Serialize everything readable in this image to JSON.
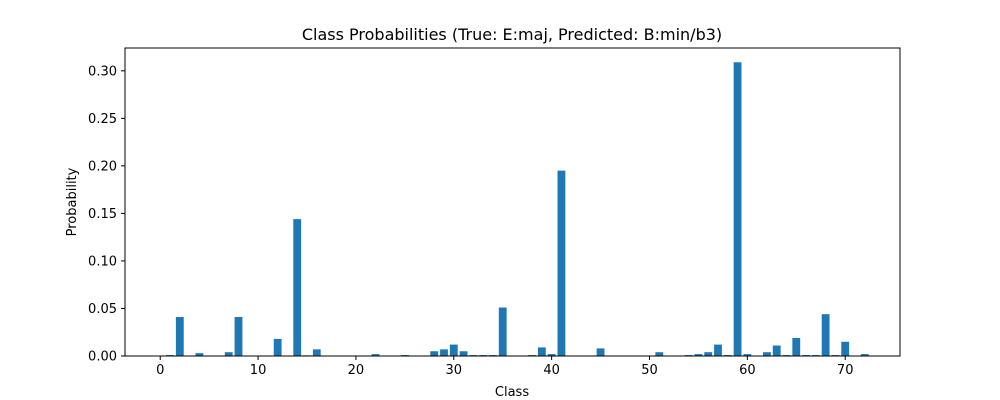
{
  "chart_data": {
    "type": "bar",
    "title": "Class Probabilities (True: E:maj, Predicted: B:min/b3)",
    "xlabel": "Class",
    "ylabel": "Probability",
    "xlim": [
      -3.6,
      75.6
    ],
    "ylim": [
      0,
      0.324
    ],
    "xticks": [
      0,
      10,
      20,
      30,
      40,
      50,
      60,
      70
    ],
    "yticks": [
      0.0,
      0.05,
      0.1,
      0.15,
      0.2,
      0.25,
      0.3
    ],
    "ytick_labels": [
      "0.00",
      "0.05",
      "0.10",
      "0.15",
      "0.20",
      "0.25",
      "0.30"
    ],
    "bar_color": "#1f77b4",
    "grid": false,
    "x": [
      0,
      1,
      2,
      3,
      4,
      5,
      6,
      7,
      8,
      9,
      10,
      11,
      12,
      13,
      14,
      15,
      16,
      17,
      18,
      19,
      20,
      21,
      22,
      23,
      24,
      25,
      26,
      27,
      28,
      29,
      30,
      31,
      32,
      33,
      34,
      35,
      36,
      37,
      38,
      39,
      40,
      41,
      42,
      43,
      44,
      45,
      46,
      47,
      48,
      49,
      50,
      51,
      52,
      53,
      54,
      55,
      56,
      57,
      58,
      59,
      60,
      61,
      62,
      63,
      64,
      65,
      66,
      67,
      68,
      69,
      70,
      71,
      72
    ],
    "values": [
      0.0003,
      0.001,
      0.041,
      0.0002,
      0.003,
      0.0002,
      0.0002,
      0.004,
      0.041,
      0.0002,
      0.0002,
      0.0002,
      0.018,
      0.0002,
      0.144,
      0.0007,
      0.007,
      0.0002,
      0.0002,
      0.0002,
      0.0002,
      0.0002,
      0.002,
      0.0002,
      0.0002,
      0.001,
      0.0002,
      0.0002,
      0.005,
      0.007,
      0.012,
      0.005,
      0.001,
      0.001,
      0.001,
      0.051,
      0.0002,
      0.0002,
      0.001,
      0.009,
      0.002,
      0.195,
      0.0002,
      0.0002,
      0.0002,
      0.008,
      0.0002,
      0.0002,
      0.0002,
      0.0002,
      0.0002,
      0.004,
      0.0002,
      0.0002,
      0.001,
      0.002,
      0.004,
      0.012,
      0.001,
      0.309,
      0.002,
      0.0002,
      0.004,
      0.011,
      0.001,
      0.019,
      0.001,
      0.001,
      0.044,
      0.001,
      0.015,
      0.0005,
      0.002
    ]
  }
}
